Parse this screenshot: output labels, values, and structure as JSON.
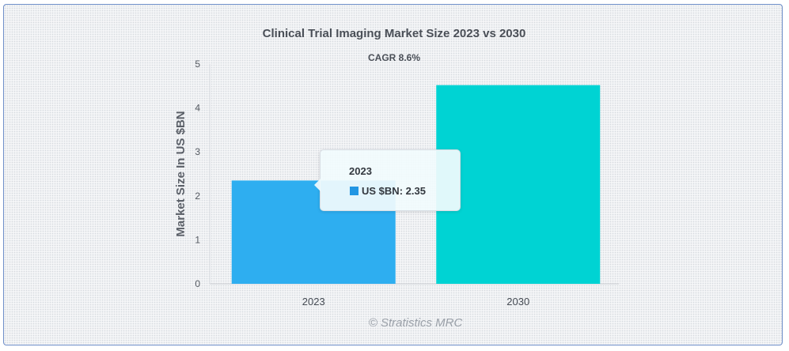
{
  "chart_data": {
    "type": "bar",
    "title": "Clinical Trial Imaging Market Size 2023 vs 2030",
    "subtitle": "CAGR 8.6%",
    "categories": [
      "2023",
      "2030"
    ],
    "values": [
      2.35,
      4.52
    ],
    "bar_colors": [
      "#2eaef0",
      "#00d3d3"
    ],
    "ylabel": "Market Size In US $BN",
    "ylim": [
      0,
      5
    ],
    "yticks": [
      "0",
      "1",
      "2",
      "3",
      "4",
      "5"
    ],
    "credit": "© Stratistics MRC",
    "tooltip": {
      "title": "2023",
      "series_label": "US $BN",
      "value_text": "2.35",
      "color": "#2196e3"
    }
  }
}
